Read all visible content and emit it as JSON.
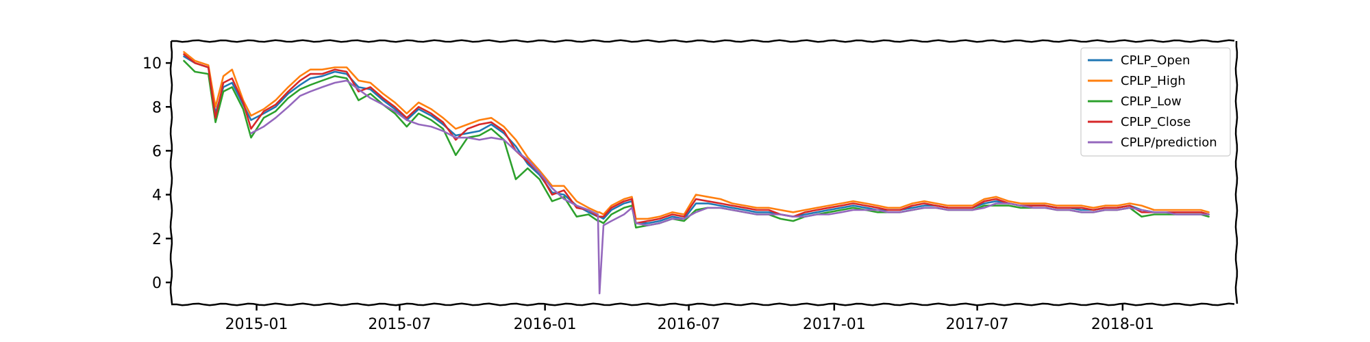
{
  "chart_data": {
    "type": "line",
    "title": "",
    "xlabel": "",
    "ylabel": "",
    "style": "xkcd-sketch",
    "grid": false,
    "legend_placement": "top-right",
    "xlim": [
      "2014-09-15",
      "2018-05-25"
    ],
    "ylim": [
      -1.0,
      11.0
    ],
    "x_ticks": [
      {
        "value": "2015-01-01",
        "label": "2015-01"
      },
      {
        "value": "2015-07-01",
        "label": "2015-07"
      },
      {
        "value": "2016-01-01",
        "label": "2016-01"
      },
      {
        "value": "2016-07-01",
        "label": "2016-07"
      },
      {
        "value": "2017-01-01",
        "label": "2017-01"
      },
      {
        "value": "2017-07-01",
        "label": "2017-07"
      },
      {
        "value": "2018-01-01",
        "label": "2018-01"
      }
    ],
    "y_ticks": [
      0,
      2,
      4,
      6,
      8,
      10
    ],
    "x": [
      "2014-10-01",
      "2014-10-15",
      "2014-11-01",
      "2014-11-10",
      "2014-11-20",
      "2014-12-01",
      "2014-12-15",
      "2014-12-25",
      "2015-01-10",
      "2015-01-25",
      "2015-02-10",
      "2015-02-25",
      "2015-03-10",
      "2015-03-25",
      "2015-04-10",
      "2015-04-25",
      "2015-05-10",
      "2015-05-25",
      "2015-06-10",
      "2015-06-25",
      "2015-07-10",
      "2015-07-25",
      "2015-08-10",
      "2015-08-25",
      "2015-09-10",
      "2015-09-25",
      "2015-10-10",
      "2015-10-25",
      "2015-11-10",
      "2015-11-25",
      "2015-12-10",
      "2015-12-25",
      "2016-01-10",
      "2016-01-25",
      "2016-02-10",
      "2016-02-25",
      "2016-03-08",
      "2016-03-10",
      "2016-03-15",
      "2016-03-25",
      "2016-04-10",
      "2016-04-20",
      "2016-04-25",
      "2016-05-10",
      "2016-05-25",
      "2016-06-10",
      "2016-06-25",
      "2016-07-10",
      "2016-07-25",
      "2016-08-10",
      "2016-08-25",
      "2016-09-10",
      "2016-09-25",
      "2016-10-10",
      "2016-10-25",
      "2016-11-10",
      "2016-11-25",
      "2016-12-10",
      "2016-12-25",
      "2017-01-10",
      "2017-01-25",
      "2017-02-10",
      "2017-02-25",
      "2017-03-10",
      "2017-03-25",
      "2017-04-10",
      "2017-04-25",
      "2017-05-10",
      "2017-05-25",
      "2017-06-10",
      "2017-06-25",
      "2017-07-10",
      "2017-07-25",
      "2017-08-10",
      "2017-08-25",
      "2017-09-10",
      "2017-09-25",
      "2017-10-10",
      "2017-10-25",
      "2017-11-10",
      "2017-11-25",
      "2017-12-10",
      "2017-12-25",
      "2018-01-10",
      "2018-01-25",
      "2018-02-10",
      "2018-02-25",
      "2018-03-10",
      "2018-03-25",
      "2018-04-10",
      "2018-04-20"
    ],
    "series": [
      {
        "name": "CPLP_Open",
        "color": "#1f77b4",
        "values": [
          10.3,
          10.0,
          9.8,
          7.7,
          8.9,
          9.1,
          8.1,
          7.4,
          7.7,
          8.0,
          8.6,
          9.0,
          9.3,
          9.4,
          9.6,
          9.5,
          8.9,
          8.8,
          8.3,
          7.9,
          7.4,
          7.9,
          7.6,
          7.2,
          6.7,
          6.8,
          6.9,
          7.2,
          6.8,
          6.2,
          5.4,
          4.9,
          4.1,
          4.0,
          3.5,
          3.2,
          3.0,
          3.0,
          2.9,
          3.3,
          3.6,
          3.7,
          2.7,
          2.7,
          2.8,
          3.0,
          2.9,
          3.6,
          3.6,
          3.5,
          3.4,
          3.3,
          3.2,
          3.2,
          3.1,
          3.0,
          3.1,
          3.2,
          3.3,
          3.4,
          3.5,
          3.4,
          3.3,
          3.3,
          3.3,
          3.4,
          3.5,
          3.5,
          3.4,
          3.4,
          3.4,
          3.6,
          3.7,
          3.6,
          3.5,
          3.5,
          3.5,
          3.4,
          3.4,
          3.3,
          3.3,
          3.4,
          3.4,
          3.5,
          3.3,
          3.2,
          3.2,
          3.2,
          3.2,
          3.2,
          3.1
        ]
      },
      {
        "name": "CPLP_High",
        "color": "#ff7f0e",
        "values": [
          10.5,
          10.1,
          9.9,
          8.0,
          9.4,
          9.7,
          8.3,
          7.6,
          7.9,
          8.3,
          8.9,
          9.4,
          9.7,
          9.7,
          9.8,
          9.8,
          9.2,
          9.1,
          8.6,
          8.2,
          7.7,
          8.2,
          7.9,
          7.5,
          7.0,
          7.2,
          7.4,
          7.5,
          7.1,
          6.5,
          5.7,
          5.1,
          4.4,
          4.4,
          3.7,
          3.4,
          3.2,
          3.2,
          3.1,
          3.5,
          3.8,
          3.9,
          2.9,
          2.9,
          3.0,
          3.2,
          3.1,
          4.0,
          3.9,
          3.8,
          3.6,
          3.5,
          3.4,
          3.4,
          3.3,
          3.2,
          3.3,
          3.4,
          3.5,
          3.6,
          3.7,
          3.6,
          3.5,
          3.4,
          3.4,
          3.6,
          3.7,
          3.6,
          3.5,
          3.5,
          3.5,
          3.8,
          3.9,
          3.7,
          3.6,
          3.6,
          3.6,
          3.5,
          3.5,
          3.5,
          3.4,
          3.5,
          3.5,
          3.6,
          3.5,
          3.3,
          3.3,
          3.3,
          3.3,
          3.3,
          3.2
        ]
      },
      {
        "name": "CPLP_Low",
        "color": "#2ca02c",
        "values": [
          10.1,
          9.6,
          9.5,
          7.3,
          8.7,
          8.9,
          7.9,
          6.6,
          7.5,
          7.8,
          8.4,
          8.8,
          9.0,
          9.2,
          9.4,
          9.3,
          8.3,
          8.6,
          8.1,
          7.7,
          7.1,
          7.7,
          7.4,
          7.0,
          5.8,
          6.6,
          6.7,
          7.0,
          6.5,
          4.7,
          5.2,
          4.7,
          3.7,
          3.9,
          3.0,
          3.1,
          2.8,
          2.8,
          2.7,
          3.1,
          3.4,
          3.5,
          2.5,
          2.6,
          2.7,
          2.9,
          2.8,
          3.3,
          3.4,
          3.4,
          3.3,
          3.2,
          3.1,
          3.1,
          2.9,
          2.8,
          3.0,
          3.1,
          3.2,
          3.3,
          3.4,
          3.3,
          3.2,
          3.2,
          3.2,
          3.3,
          3.4,
          3.4,
          3.3,
          3.3,
          3.3,
          3.5,
          3.5,
          3.5,
          3.4,
          3.4,
          3.4,
          3.3,
          3.3,
          3.2,
          3.2,
          3.3,
          3.3,
          3.4,
          3.0,
          3.1,
          3.1,
          3.1,
          3.1,
          3.1,
          3.0
        ]
      },
      {
        "name": "CPLP_Close",
        "color": "#d62728",
        "values": [
          10.4,
          10.0,
          9.8,
          7.5,
          9.1,
          9.3,
          8.2,
          7.0,
          7.8,
          8.1,
          8.7,
          9.2,
          9.5,
          9.5,
          9.7,
          9.6,
          8.7,
          8.9,
          8.4,
          8.0,
          7.5,
          8.0,
          7.7,
          7.3,
          6.5,
          7.0,
          7.2,
          7.3,
          6.9,
          6.0,
          5.5,
          5.0,
          4.0,
          4.2,
          3.4,
          3.3,
          3.0,
          3.0,
          3.0,
          3.4,
          3.7,
          3.8,
          2.7,
          2.8,
          2.9,
          3.1,
          3.0,
          3.8,
          3.7,
          3.6,
          3.5,
          3.4,
          3.3,
          3.3,
          3.1,
          3.0,
          3.2,
          3.3,
          3.4,
          3.5,
          3.6,
          3.5,
          3.4,
          3.3,
          3.3,
          3.5,
          3.6,
          3.5,
          3.4,
          3.4,
          3.4,
          3.7,
          3.8,
          3.6,
          3.5,
          3.5,
          3.5,
          3.4,
          3.4,
          3.4,
          3.3,
          3.4,
          3.4,
          3.5,
          3.2,
          3.2,
          3.2,
          3.2,
          3.2,
          3.2,
          3.1
        ]
      },
      {
        "name": "CPLP/prediction",
        "color": "#9467bd",
        "values": [
          null,
          null,
          null,
          null,
          null,
          null,
          null,
          6.8,
          7.1,
          7.5,
          8.0,
          8.5,
          8.7,
          8.9,
          9.1,
          9.2,
          8.8,
          8.4,
          8.1,
          7.8,
          7.4,
          7.2,
          7.1,
          6.9,
          6.6,
          6.6,
          6.5,
          6.6,
          6.5,
          6.0,
          5.6,
          5.0,
          4.3,
          3.8,
          3.5,
          3.3,
          3.1,
          -0.5,
          2.6,
          2.8,
          3.1,
          3.4,
          2.7,
          2.6,
          2.7,
          2.9,
          2.9,
          3.2,
          3.4,
          3.4,
          3.3,
          3.2,
          3.1,
          3.1,
          3.1,
          3.0,
          3.0,
          3.1,
          3.1,
          3.2,
          3.3,
          3.3,
          3.3,
          3.2,
          3.2,
          3.3,
          3.4,
          3.4,
          3.3,
          3.3,
          3.3,
          3.4,
          3.6,
          3.6,
          3.5,
          3.4,
          3.4,
          3.3,
          3.3,
          3.2,
          3.2,
          3.3,
          3.3,
          3.4,
          3.3,
          3.2,
          3.2,
          3.1,
          3.1,
          3.1,
          3.1
        ]
      }
    ]
  }
}
